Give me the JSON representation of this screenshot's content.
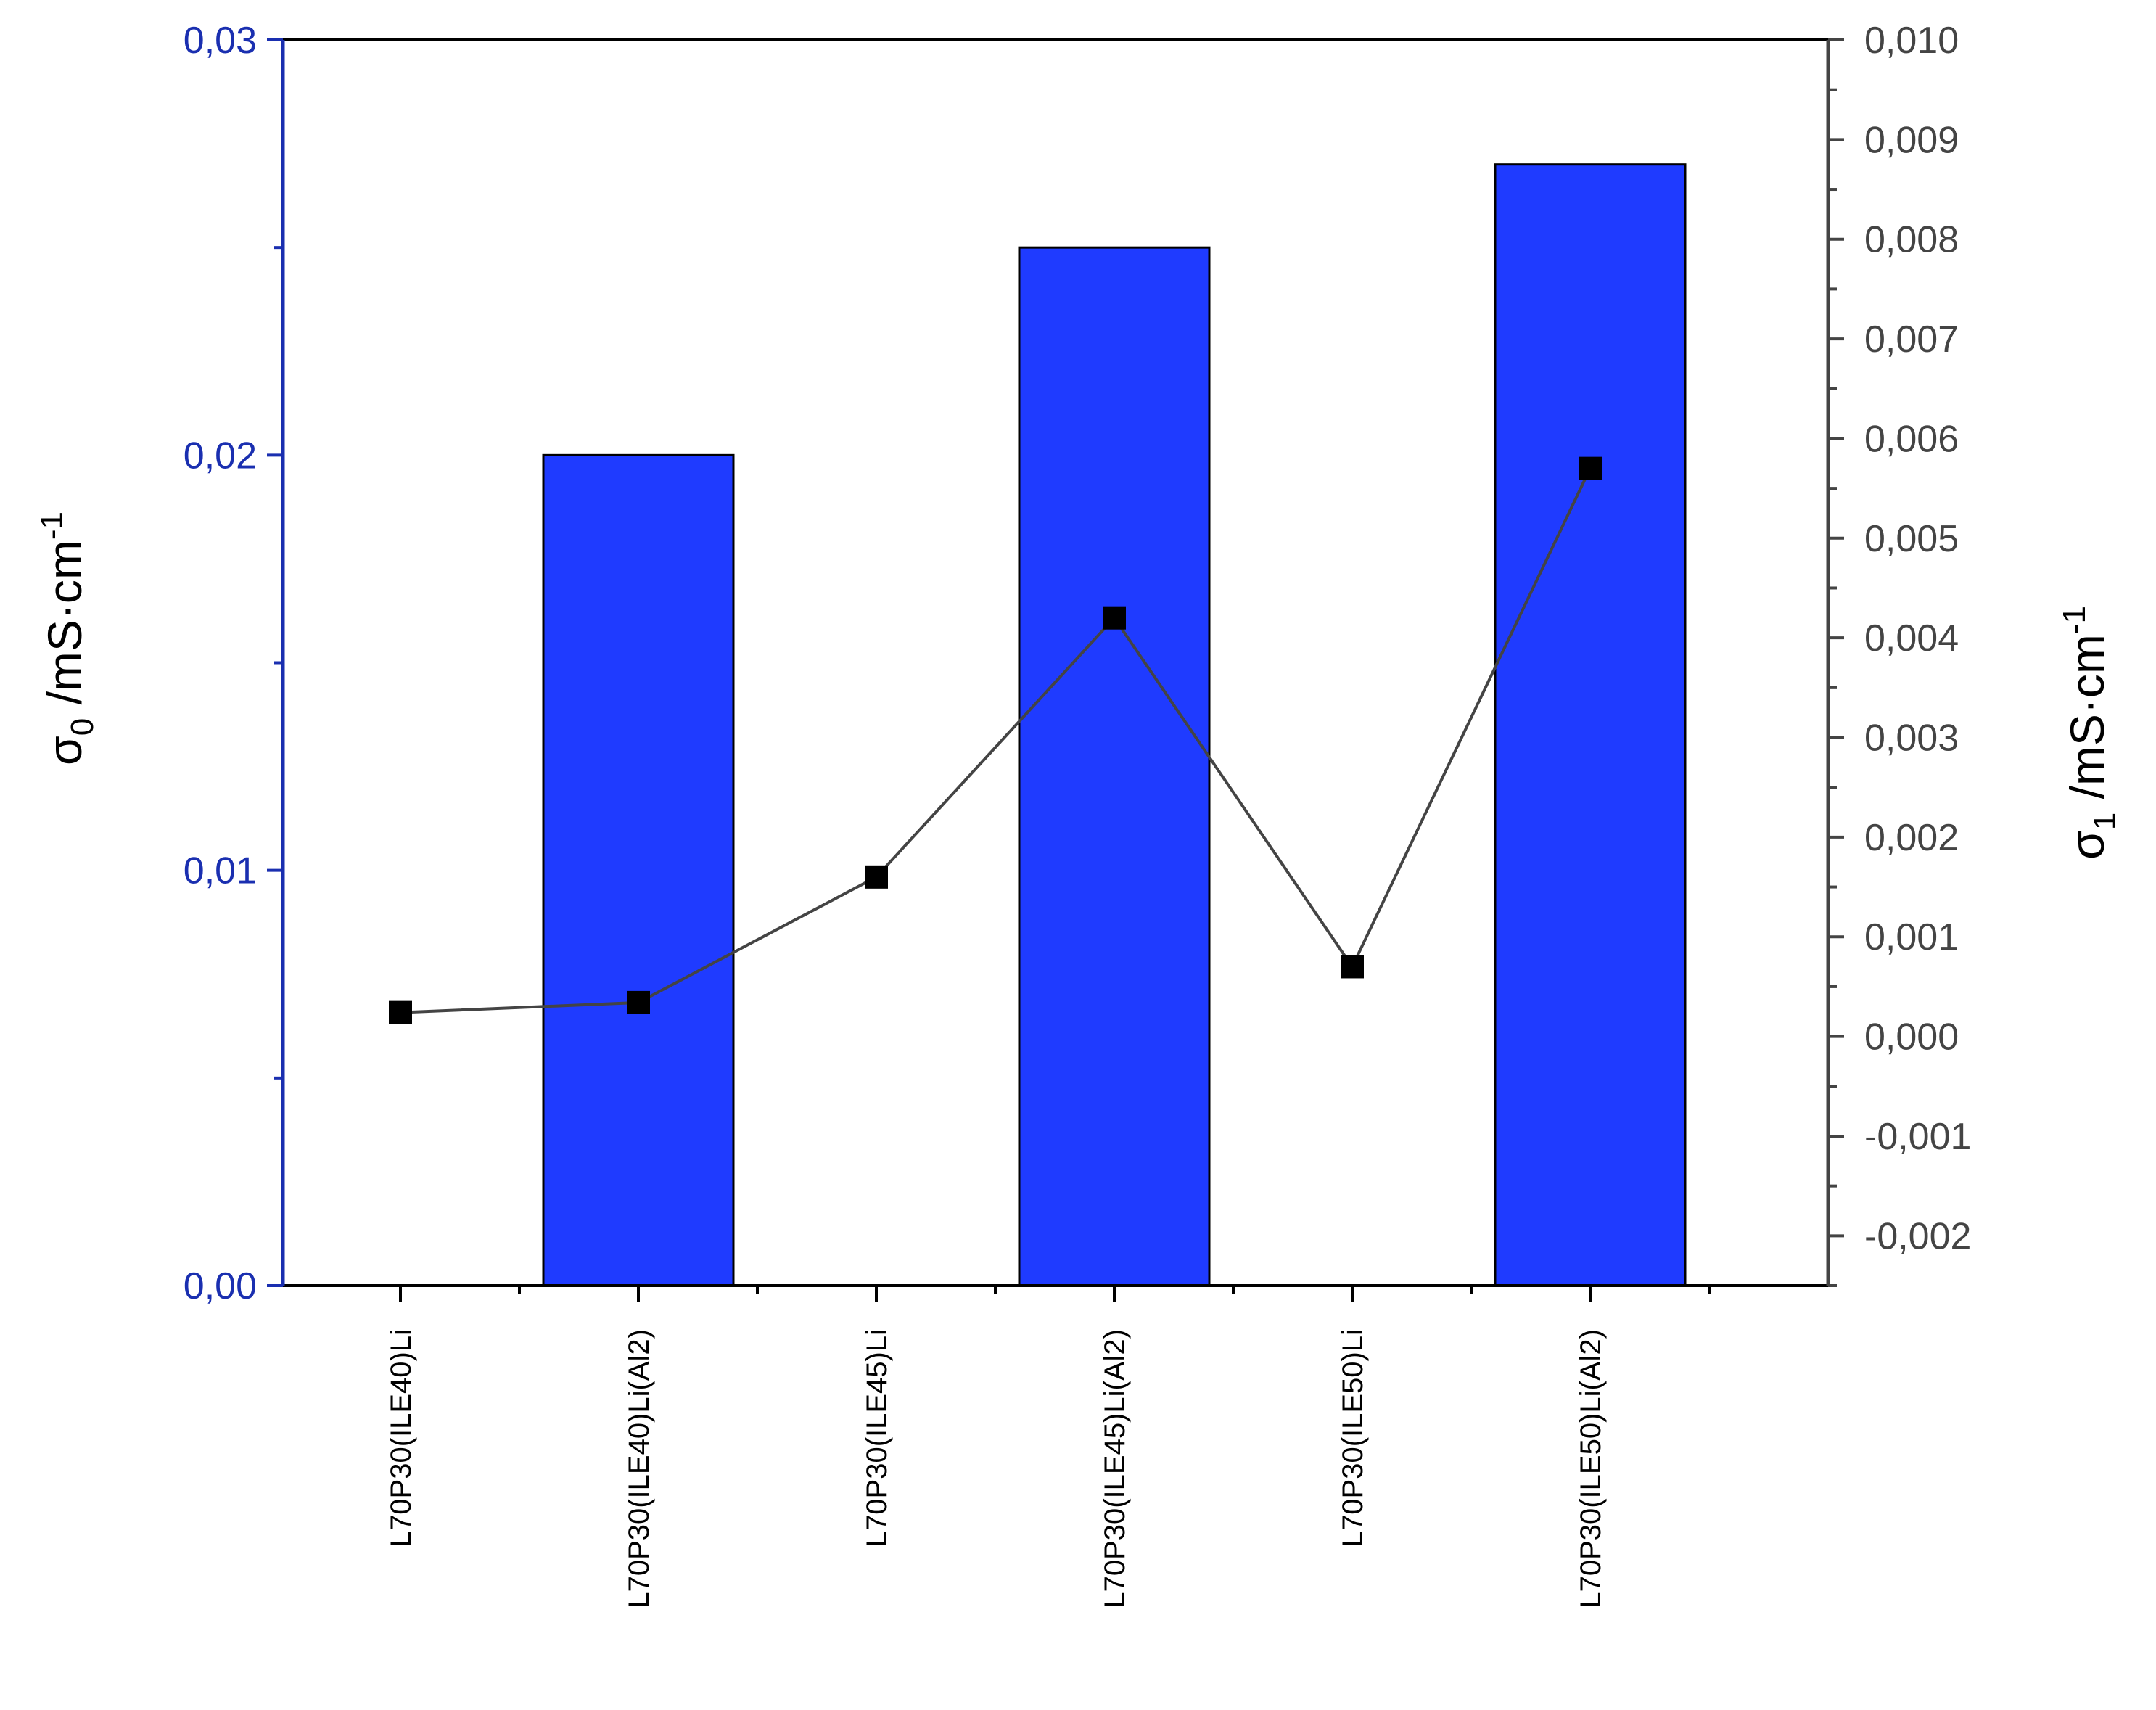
{
  "chart_data": {
    "type": "bar",
    "categories": [
      "L70P30(ILE40)Li",
      "L70P30(ILE40)Li(Al2)",
      "L70P30(ILE45)Li",
      "L70P30(ILE45)Li(Al2)",
      "L70P30(ILE50)Li",
      "L70P30(ILE50)Li(Al2)"
    ],
    "series": [
      {
        "type": "bar",
        "axis": "left",
        "color": "#1f3bff",
        "values": [
          null,
          0.02,
          null,
          0.025,
          null,
          0.027
        ]
      },
      {
        "type": "line",
        "axis": "right",
        "color": "#000000",
        "line_color": "#444444",
        "marker": "square",
        "values": [
          0.00024,
          0.00034,
          0.0016,
          0.0042,
          0.0007,
          0.0057
        ]
      }
    ],
    "left_axis": {
      "label_symbol": "σ",
      "label_subscript": "0",
      "label_unit": " /mS·cm",
      "label_exponent": "-1",
      "ylim": [
        0,
        0.03
      ],
      "ticks": [
        0,
        0.01,
        0.02,
        0.03
      ],
      "tick_labels": [
        "0,00",
        "0,01",
        "0,02",
        "0,03"
      ],
      "color": "#1a2fb0",
      "title_color": "#1f3bff"
    },
    "right_axis": {
      "label_symbol": "σ",
      "label_subscript": "1",
      "label_unit": " /mS·cm",
      "label_exponent": "-1",
      "ylim": [
        -0.0025,
        0.01
      ],
      "ticks": [
        -0.002,
        -0.001,
        0.0,
        0.001,
        0.002,
        0.003,
        0.004,
        0.005,
        0.006,
        0.007,
        0.008,
        0.009,
        0.01
      ],
      "tick_labels": [
        "-0,002",
        "-0,001",
        "0,000",
        "0,001",
        "0,002",
        "0,003",
        "0,004",
        "0,005",
        "0,006",
        "0,007",
        "0,008",
        "0,009",
        "0,010"
      ],
      "color": "#444444",
      "title_color": "#000000"
    },
    "grid": false,
    "legend": "none"
  }
}
